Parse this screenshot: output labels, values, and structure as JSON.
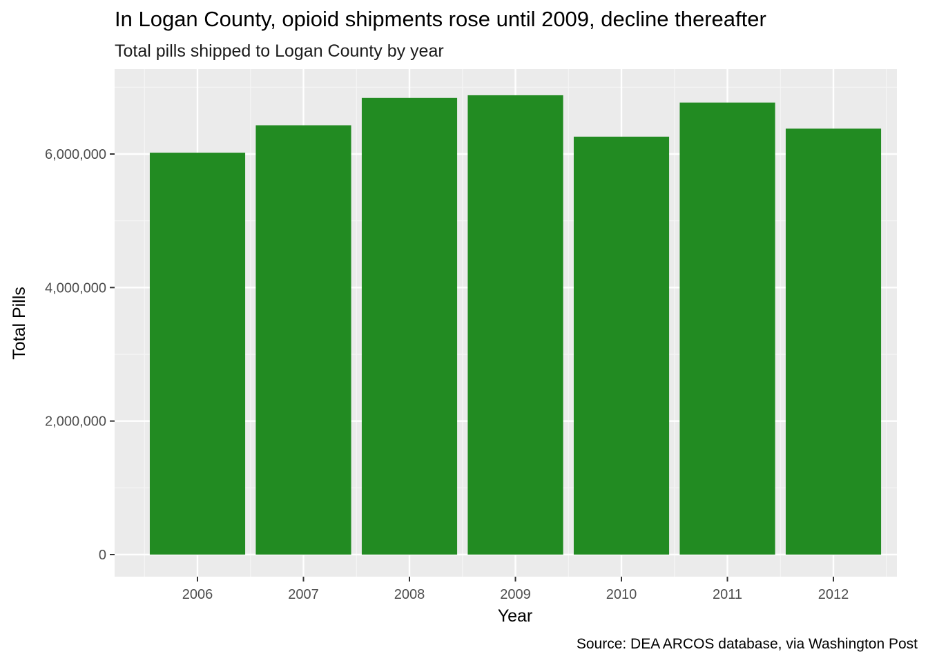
{
  "colors": {
    "bar": "#228b22",
    "panel": "#ebebeb",
    "grid_major": "#ffffff",
    "grid_minor": "#f5f5f5",
    "tick_text": "#4d4d4d",
    "tick_mark": "#333333"
  },
  "chart_data": {
    "type": "bar",
    "title": "In Logan County, opioid shipments rose until 2009, decline thereafter",
    "subtitle": "Total pills shipped to Logan County by year",
    "caption": "Source: DEA ARCOS database, via Washington Post",
    "xlabel": "Year",
    "ylabel": "Total Pills",
    "categories": [
      "2006",
      "2007",
      "2008",
      "2009",
      "2010",
      "2011",
      "2012"
    ],
    "values": [
      6020000,
      6430000,
      6840000,
      6880000,
      6260000,
      6770000,
      6380000
    ],
    "ylim": [
      0,
      7000000
    ],
    "yticks": [
      0,
      2000000,
      4000000,
      6000000
    ],
    "ytick_labels": [
      "0",
      "2,000,000",
      "4,000,000",
      "6,000,000"
    ],
    "grid": true,
    "legend": "none"
  }
}
